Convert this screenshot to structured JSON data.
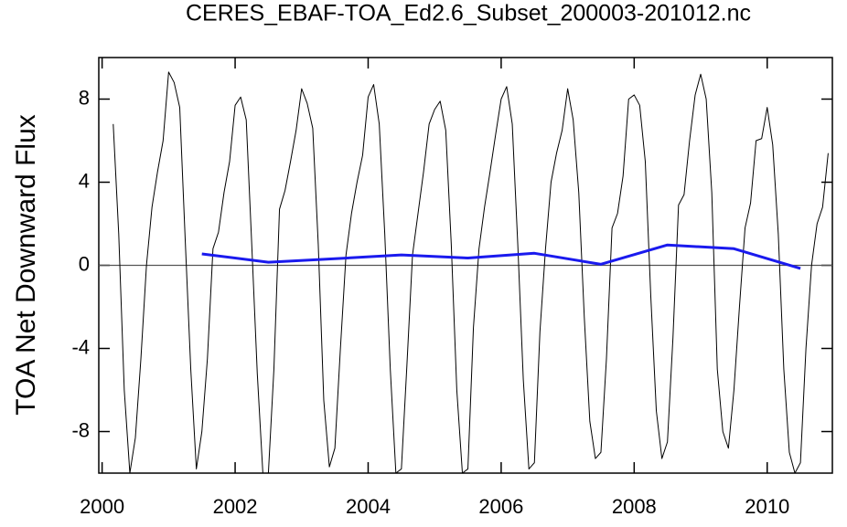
{
  "chart_data": {
    "type": "line",
    "title": "CERES_EBAF-TOA_Ed2.6_Subset_200003-201012.nc",
    "y_label": "TOA Net Downward Flux",
    "xlim": [
      1999.95,
      2010.98
    ],
    "xticks": [
      2000,
      2002,
      2004,
      2006,
      2008,
      2010
    ],
    "ylim": [
      -10,
      10
    ],
    "yticks": [
      -8,
      -4,
      0,
      4,
      8
    ],
    "reference_line": 0,
    "reference_color": "#555555",
    "series": [
      {
        "color": "#000000",
        "width": 1,
        "x": [
          2000.167,
          2000.25,
          2000.333,
          2000.417,
          2000.5,
          2000.583,
          2000.667,
          2000.75,
          2000.833,
          2000.917,
          2001,
          2001.083,
          2001.167,
          2001.25,
          2001.333,
          2001.417,
          2001.5,
          2001.583,
          2001.667,
          2001.75,
          2001.833,
          2001.917,
          2002,
          2002.083,
          2002.167,
          2002.25,
          2002.333,
          2002.417,
          2002.5,
          2002.583,
          2002.667,
          2002.75,
          2002.833,
          2002.917,
          2003,
          2003.083,
          2003.167,
          2003.25,
          2003.333,
          2003.417,
          2003.5,
          2003.583,
          2003.667,
          2003.75,
          2003.833,
          2003.917,
          2004,
          2004.083,
          2004.167,
          2004.25,
          2004.333,
          2004.417,
          2004.5,
          2004.583,
          2004.667,
          2004.75,
          2004.833,
          2004.917,
          2005,
          2005.083,
          2005.167,
          2005.25,
          2005.333,
          2005.417,
          2005.5,
          2005.583,
          2005.667,
          2005.75,
          2005.833,
          2005.917,
          2006,
          2006.083,
          2006.167,
          2006.25,
          2006.333,
          2006.417,
          2006.5,
          2006.583,
          2006.667,
          2006.75,
          2006.833,
          2006.917,
          2007,
          2007.083,
          2007.167,
          2007.25,
          2007.333,
          2007.417,
          2007.5,
          2007.583,
          2007.667,
          2007.75,
          2007.833,
          2007.917,
          2008,
          2008.083,
          2008.167,
          2008.25,
          2008.333,
          2008.417,
          2008.5,
          2008.583,
          2008.667,
          2008.75,
          2008.833,
          2008.917,
          2009,
          2009.083,
          2009.167,
          2009.25,
          2009.333,
          2009.417,
          2009.5,
          2009.583,
          2009.667,
          2009.75,
          2009.833,
          2009.917,
          2010,
          2010.083,
          2010.167,
          2010.25,
          2010.333,
          2010.417,
          2010.5,
          2010.583,
          2010.667,
          2010.75,
          2010.833,
          2010.917
        ],
        "values": [
          6.8,
          1.5,
          -6.0,
          -10.0,
          -8.3,
          -4.5,
          0.0,
          2.8,
          4.5,
          6.0,
          9.3,
          8.8,
          7.6,
          1.2,
          -5.0,
          -9.8,
          -8.0,
          -4.5,
          0.8,
          1.6,
          3.5,
          5.0,
          7.7,
          8.1,
          7.0,
          1.0,
          -5.2,
          -10.0,
          -10.0,
          -5.0,
          2.7,
          3.6,
          5.0,
          6.5,
          8.5,
          7.8,
          6.6,
          1.0,
          -6.5,
          -9.7,
          -8.8,
          -4.0,
          0.5,
          2.5,
          4.0,
          5.3,
          8.1,
          8.7,
          6.8,
          1.5,
          -5.0,
          -10.0,
          -9.8,
          -4.8,
          0.5,
          2.5,
          4.5,
          6.8,
          7.5,
          7.9,
          6.5,
          1.0,
          -6.0,
          -10.0,
          -9.8,
          -3.0,
          0.8,
          2.8,
          4.5,
          6.3,
          8.0,
          8.6,
          6.8,
          1.0,
          -5.5,
          -9.8,
          -9.5,
          -3.2,
          0.8,
          4.0,
          5.4,
          6.5,
          8.5,
          7.0,
          3.5,
          -2.5,
          -7.5,
          -9.3,
          -9.0,
          -4.5,
          1.8,
          2.5,
          4.3,
          8.0,
          8.2,
          7.7,
          5.0,
          -1.5,
          -7.0,
          -9.3,
          -8.5,
          -3.5,
          2.9,
          3.4,
          6.0,
          8.2,
          9.2,
          8.0,
          3.5,
          -5.0,
          -8.0,
          -8.8,
          -6.0,
          -2.0,
          1.8,
          3.0,
          6.0,
          6.1,
          7.6,
          5.8,
          1.5,
          -5.0,
          -9.0,
          -10.0,
          -9.5,
          -4.0,
          0.0,
          2.0,
          2.8,
          5.4
        ]
      },
      {
        "color": "#1a1aee",
        "width": 3,
        "x": [
          2001.5,
          2002.5,
          2003.5,
          2004.5,
          2005.5,
          2006.5,
          2007.5,
          2008.5,
          2009.5,
          2010.5
        ],
        "values": [
          0.55,
          0.15,
          0.32,
          0.5,
          0.35,
          0.58,
          0.05,
          0.98,
          0.8,
          -0.15
        ]
      }
    ]
  }
}
